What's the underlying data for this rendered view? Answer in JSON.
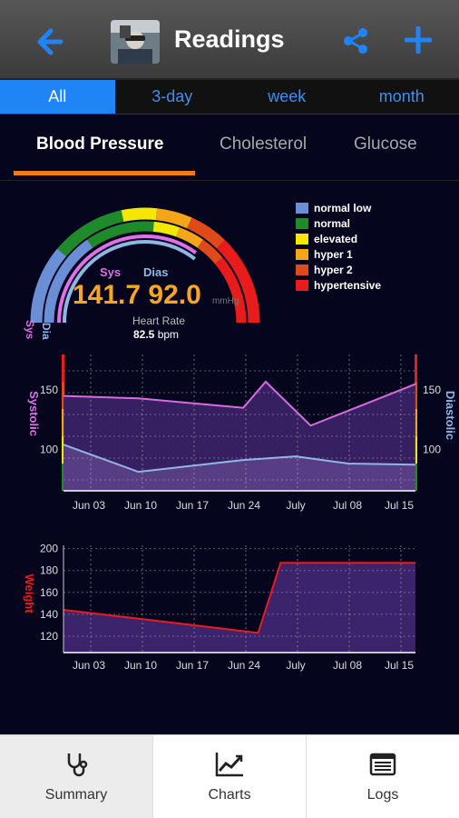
{
  "header": {
    "title": "Readings",
    "icons": {
      "back": "back-arrow-icon",
      "avatar": "profile-avatar",
      "share": "share-icon",
      "add": "plus-icon"
    },
    "accent": "#1f84f5"
  },
  "range_tabs": [
    {
      "label": "All",
      "active": true
    },
    {
      "label": "3-day",
      "active": false
    },
    {
      "label": "week",
      "active": false
    },
    {
      "label": "month",
      "active": false
    }
  ],
  "category_tabs": [
    {
      "label": "Blood Pressure",
      "active": true
    },
    {
      "label": "Cholesterol",
      "active": false
    },
    {
      "label": "Glucose",
      "active": false
    }
  ],
  "gauge": {
    "sys_label": "Sys",
    "dias_label": "Dias",
    "reading": "141.7 92.0",
    "unit": "mmHg",
    "heart_rate_label": "Heart Rate",
    "heart_rate_value": "82.5",
    "heart_rate_unit": "bpm",
    "left_axis_sys": "Sys",
    "left_axis_dia": "Dia",
    "legend": [
      {
        "label": "normal low",
        "color": "#6b8fd6"
      },
      {
        "label": "normal",
        "color": "#1e8a2a"
      },
      {
        "label": "elevated",
        "color": "#f4e800"
      },
      {
        "label": "hyper 1",
        "color": "#f4a51a"
      },
      {
        "label": "hyper 2",
        "color": "#e0491a"
      },
      {
        "label": "hypertensive",
        "color": "#e81c1c"
      }
    ]
  },
  "chart_data": [
    {
      "type": "line",
      "title": "",
      "ylabel_left": "Systolic",
      "ylabel_right": "Diastolic",
      "x_ticks": [
        "Jun 03",
        "Jun 10",
        "Jun 17",
        "Jun 24",
        "July",
        "Jul 08",
        "Jul 15"
      ],
      "y_ticks_left": [
        "150",
        "100"
      ],
      "y_ticks_right": [
        "150",
        "100"
      ],
      "ylim": [
        65,
        180
      ],
      "series": [
        {
          "name": "Systolic",
          "color": "#d86be0",
          "x": [
            "May 31",
            "Jun 10",
            "Jun 17",
            "Jun 24",
            "Jun 27",
            "Jul 03",
            "Jul 17"
          ],
          "values": [
            145,
            143,
            139,
            135,
            157,
            120,
            155
          ]
        },
        {
          "name": "Diastolic",
          "color": "#8fb7e6",
          "x": [
            "May 31",
            "Jun 10",
            "Jun 17",
            "Jun 24",
            "Jul 01",
            "Jul 08",
            "Jul 17"
          ],
          "values": [
            104,
            81,
            86,
            91,
            94,
            88,
            87
          ]
        }
      ],
      "grid": true
    },
    {
      "type": "line",
      "title": "",
      "ylabel": "Weight",
      "x_ticks": [
        "Jun 03",
        "Jun 10",
        "Jun 17",
        "Jun 24",
        "July",
        "Jul 08",
        "Jul 15"
      ],
      "y_ticks": [
        "200",
        "180",
        "160",
        "140",
        "120"
      ],
      "ylim": [
        105,
        203
      ],
      "series": [
        {
          "name": "Weight",
          "color": "#e81c1c",
          "x": [
            "May 31",
            "Jun 10",
            "Jun 26",
            "Jun 29",
            "Jul 17"
          ],
          "values": [
            144,
            136,
            123,
            187,
            187
          ]
        }
      ],
      "grid": true
    }
  ],
  "bottom_nav": [
    {
      "label": "Summary",
      "icon": "stethoscope-icon",
      "active": true
    },
    {
      "label": "Charts",
      "icon": "line-chart-icon",
      "active": false
    },
    {
      "label": "Logs",
      "icon": "list-icon",
      "active": false
    }
  ]
}
